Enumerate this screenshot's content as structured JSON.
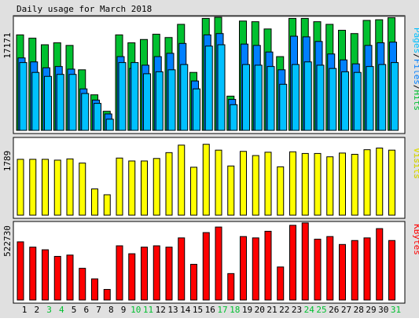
{
  "title": "Daily usage for March 2018",
  "colors": {
    "background": "#e0e0e0",
    "panel": "#ffffff",
    "hits": "#00c030",
    "files": "#0080ff",
    "pages": "#00c0ff",
    "visits": "#ffff00",
    "kbytes": "#ff0000",
    "weekday_label": "#000000",
    "weekend_label": "#00c030"
  },
  "chart_data": [
    {
      "type": "bar",
      "categories": [
        "1",
        "2",
        "3",
        "4",
        "5",
        "6",
        "7",
        "8",
        "9",
        "10",
        "11",
        "12",
        "13",
        "14",
        "15",
        "16",
        "17",
        "18",
        "19",
        "20",
        "21",
        "22",
        "23",
        "24",
        "25",
        "26",
        "27",
        "28",
        "29",
        "30",
        "31"
      ],
      "weekend_days": [
        "3",
        "4",
        "10",
        "11",
        "17",
        "18",
        "24",
        "25",
        "31"
      ],
      "ylabel_max": "17171",
      "ymax": 17171,
      "legend": [
        "Pages",
        "Files",
        "Hits"
      ],
      "legend_colors": [
        "#00c0ff",
        "#0080ff",
        "#00c030"
      ],
      "series": [
        {
          "name": "Hits",
          "values": [
            14500,
            14000,
            13000,
            13300,
            12900,
            9200,
            5400,
            2900,
            14500,
            13300,
            13800,
            14600,
            14100,
            16100,
            8800,
            17000,
            17171,
            5200,
            16600,
            16500,
            15400,
            11200,
            17000,
            17000,
            16500,
            16100,
            15200,
            14700,
            16700,
            16800,
            17100
          ]
        },
        {
          "name": "Files",
          "values": [
            11000,
            10400,
            9500,
            9700,
            9300,
            6300,
            4600,
            2500,
            11200,
            9400,
            9900,
            11200,
            11700,
            13200,
            7500,
            14500,
            14700,
            4700,
            13100,
            12900,
            11900,
            9200,
            14300,
            14200,
            13500,
            11600,
            10700,
            10100,
            12900,
            13300,
            13400
          ]
        },
        {
          "name": "Pages",
          "values": [
            10300,
            8800,
            8200,
            8500,
            8500,
            5600,
            4100,
            1700,
            10300,
            10300,
            8600,
            8900,
            9200,
            10000,
            6300,
            12800,
            13000,
            3900,
            10000,
            9900,
            9700,
            7000,
            10000,
            10400,
            9900,
            9400,
            8900,
            8800,
            9700,
            10000,
            10300
          ]
        }
      ]
    },
    {
      "type": "bar",
      "categories": [
        "1",
        "2",
        "3",
        "4",
        "5",
        "6",
        "7",
        "8",
        "9",
        "10",
        "11",
        "12",
        "13",
        "14",
        "15",
        "16",
        "17",
        "18",
        "19",
        "20",
        "21",
        "22",
        "23",
        "24",
        "25",
        "26",
        "27",
        "28",
        "29",
        "30",
        "31"
      ],
      "ylabel_max": "1789",
      "ymax": 1789,
      "legend": [
        "Visits"
      ],
      "legend_colors": [
        "#ffff00"
      ],
      "series": [
        {
          "name": "Visits",
          "values": [
            1340,
            1340,
            1340,
            1320,
            1350,
            1250,
            630,
            490,
            1370,
            1300,
            1300,
            1360,
            1500,
            1680,
            1150,
            1700,
            1560,
            1180,
            1530,
            1430,
            1510,
            1160,
            1520,
            1480,
            1480,
            1400,
            1490,
            1460,
            1570,
            1610,
            1560
          ]
        }
      ]
    },
    {
      "type": "bar",
      "categories": [
        "1",
        "2",
        "3",
        "4",
        "5",
        "6",
        "7",
        "8",
        "9",
        "10",
        "11",
        "12",
        "13",
        "14",
        "15",
        "16",
        "17",
        "18",
        "19",
        "20",
        "21",
        "22",
        "23",
        "24",
        "25",
        "26",
        "27",
        "28",
        "29",
        "30",
        "31"
      ],
      "ylabel_max": "522730",
      "ymax": 522730,
      "legend": [
        "KBytes"
      ],
      "legend_colors": [
        "#ff0000"
      ],
      "series": [
        {
          "name": "KBytes",
          "values": [
            440000,
            400000,
            380000,
            330000,
            340000,
            240000,
            160000,
            80000,
            410000,
            350000,
            400000,
            410000,
            400000,
            470000,
            270000,
            510000,
            552000,
            200000,
            480000,
            470000,
            520000,
            250000,
            565000,
            583000,
            460000,
            480000,
            420000,
            450000,
            470000,
            540000,
            450000
          ]
        }
      ]
    }
  ]
}
